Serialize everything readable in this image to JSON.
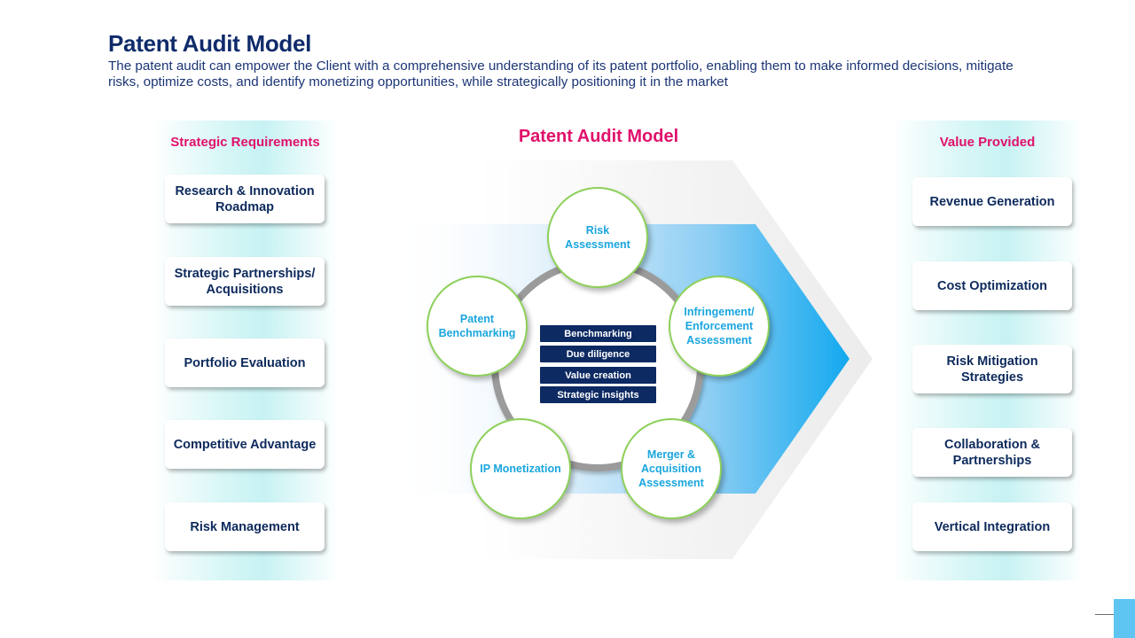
{
  "header": {
    "title": "Patent Audit Model",
    "subtitle": "The patent audit can empower the Client with a comprehensive understanding of its patent portfolio, enabling them to make informed decisions, mitigate risks, optimize costs, and identify monetizing opportunities, while strategically positioning it in the market"
  },
  "left_panel": {
    "heading": "Strategic Requirements",
    "items": [
      "Research & Innovation Roadmap",
      "Strategic Partnerships/ Acquisitions",
      "Portfolio Evaluation",
      "Competitive Advantage",
      "Risk Management"
    ]
  },
  "center": {
    "title": "Patent Audit Model",
    "nodes": [
      "Risk Assessment",
      "Infringement/ Enforcement Assessment",
      "Merger & Acquisition Assessment",
      "IP Monetization",
      "Patent Benchmarking"
    ],
    "core_tags": [
      "Benchmarking",
      "Due diligence",
      "Value creation",
      "Strategic insights"
    ]
  },
  "right_panel": {
    "heading": "Value Provided",
    "items": [
      "Revenue Generation",
      "Cost Optimization",
      "Risk Mitigation Strategies",
      "Collaboration & Partnerships",
      "Vertical Integration"
    ]
  },
  "colors": {
    "accent_pink": "#e0116b",
    "navy": "#0d2a63",
    "node_text_blue": "#1aa6de",
    "node_border_green": "#8dd05a",
    "arrow_blue": "#1aaeef",
    "panel_teal": "#c7f2f3"
  }
}
